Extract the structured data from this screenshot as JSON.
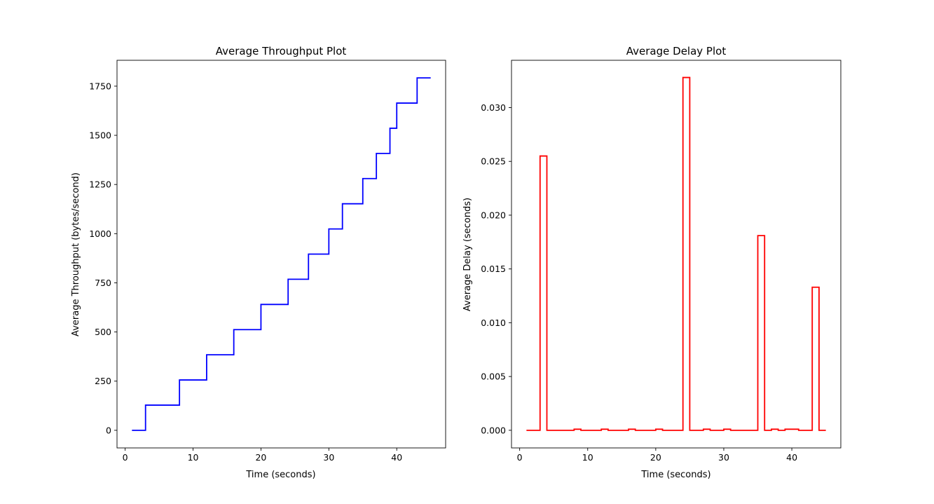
{
  "chart_data": [
    {
      "type": "line",
      "step": "post",
      "title": "Average Throughput Plot",
      "xlabel": "Time (seconds)",
      "ylabel": "Average Throughput (bytes/second)",
      "xlim": [
        -1.2,
        47.2
      ],
      "ylim": [
        -89.6,
        1881.6
      ],
      "xticks": [
        0,
        10,
        20,
        30,
        40
      ],
      "yticks": [
        0,
        250,
        500,
        750,
        1000,
        1250,
        1500,
        1750
      ],
      "color": "#0000ff",
      "series": [
        {
          "x": [
            1,
            3,
            8,
            12,
            16,
            20,
            24,
            27,
            30,
            32,
            35,
            37,
            39,
            40,
            43,
            45
          ],
          "y": [
            0,
            128,
            256,
            384,
            512,
            640,
            768,
            896,
            1024,
            1152,
            1280,
            1408,
            1536,
            1664,
            1792,
            1792
          ]
        }
      ]
    },
    {
      "type": "line",
      "step": "post",
      "title": "Average Delay Plot",
      "xlabel": "Time (seconds)",
      "ylabel": "Average Delay (seconds)",
      "xlim": [
        -1.2,
        47.2
      ],
      "ylim": [
        -0.00164,
        0.0344
      ],
      "xticks": [
        0,
        10,
        20,
        30,
        40
      ],
      "yticks": [
        0.0,
        0.005,
        0.01,
        0.015,
        0.02,
        0.025,
        0.03
      ],
      "ytick_labels": [
        "0.000",
        "0.005",
        "0.010",
        "0.015",
        "0.020",
        "0.025",
        "0.030"
      ],
      "color": "#ff0000",
      "series": [
        {
          "x": [
            1,
            3,
            4,
            8,
            9,
            12,
            13,
            16,
            17,
            20,
            21,
            24,
            25,
            27,
            28,
            30,
            31,
            35,
            36,
            37,
            38,
            39,
            41,
            43,
            44,
            45
          ],
          "y": [
            0,
            0.0255,
            0,
            0.0001,
            0,
            0.0001,
            0,
            0.0001,
            0,
            0.0001,
            0,
            0.0328,
            0,
            0.0001,
            0,
            0.0001,
            0,
            0.0181,
            0,
            0.0001,
            0,
            0.0001,
            0,
            0.0133,
            0,
            0
          ]
        }
      ]
    }
  ]
}
